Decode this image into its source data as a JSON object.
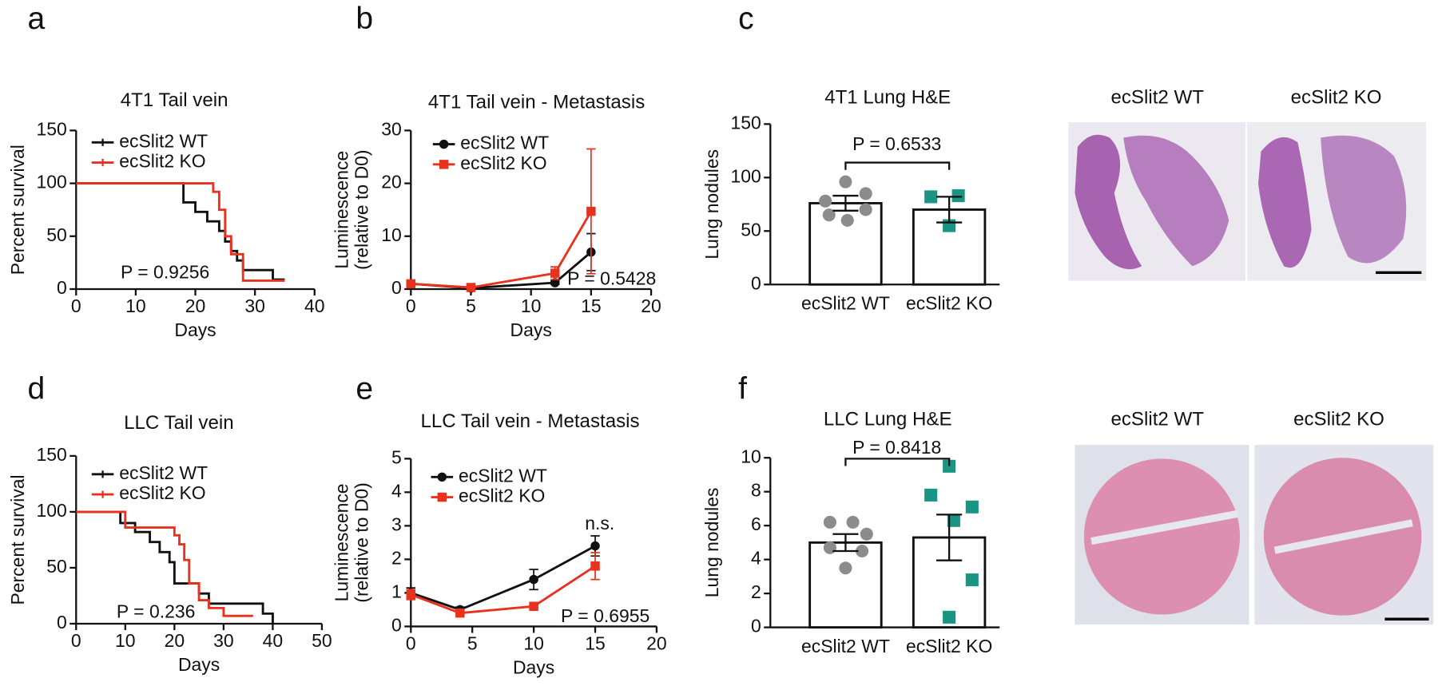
{
  "panel_letters": [
    "a",
    "b",
    "c",
    "d",
    "e",
    "f"
  ],
  "image_labels": [
    [
      "ecSlit2 WT",
      "ecSlit2 KO"
    ],
    [
      "ecSlit2 WT",
      "ecSlit2 KO"
    ]
  ],
  "chart_data": [
    {
      "type": "survival",
      "title": "4T1 Tail vein",
      "xlabel": "Days",
      "ylabel": [
        "Percent survival"
      ],
      "xlim": [
        0,
        40
      ],
      "xticks": [
        0,
        10,
        20,
        30,
        40
      ],
      "ylim": [
        0,
        150
      ],
      "yticks": [
        0,
        50,
        100,
        150
      ],
      "series": [
        {
          "name": "ecSlit2 WT",
          "color": "#111111",
          "x": [
            0,
            18,
            20,
            22,
            24,
            25,
            26,
            27,
            28,
            33,
            35
          ],
          "values": [
            100,
            82,
            73,
            64,
            55,
            45,
            36,
            27,
            18,
            9,
            9
          ]
        },
        {
          "name": "ecSlit2 KO",
          "color": "#e8321e",
          "x": [
            0,
            23,
            24,
            25,
            26,
            28,
            35
          ],
          "values": [
            100,
            92,
            75,
            50,
            33,
            8,
            8
          ]
        }
      ],
      "annotations": [
        "P = 0.9256"
      ]
    },
    {
      "type": "line",
      "title": "4T1 Tail vein - Metastasis",
      "xlabel": "Days",
      "ylabel": [
        "Luminescence",
        "(relative to D0)"
      ],
      "xlim": [
        0,
        20
      ],
      "xticks": [
        0,
        5,
        10,
        15,
        20
      ],
      "ylim": [
        0,
        30
      ],
      "yticks": [
        0,
        10,
        20,
        30
      ],
      "x": [
        0,
        5,
        12,
        15
      ],
      "series": [
        {
          "name": "ecSlit2 WT",
          "color": "#111111",
          "marker": "circle",
          "values": [
            1,
            0.2,
            1.2,
            7
          ],
          "errors": [
            0.3,
            0.1,
            0.3,
            3.5
          ]
        },
        {
          "name": "ecSlit2 KO",
          "color": "#e8321e",
          "marker": "square",
          "values": [
            1,
            0.3,
            3,
            14.7
          ],
          "errors": [
            0.3,
            0.1,
            1.2,
            11.8
          ]
        }
      ],
      "annotations": [
        "P = 0.5428"
      ]
    },
    {
      "type": "bar",
      "title": "4T1 Lung H&E",
      "ylabel": [
        "Lung nodules"
      ],
      "ylim": [
        0,
        150
      ],
      "yticks": [
        0,
        50,
        100,
        150
      ],
      "categories": [
        "ecSlit2 WT",
        "ecSlit2 KO"
      ],
      "values": [
        76,
        70
      ],
      "errors": [
        7,
        12
      ],
      "colors": [
        "#8c8c8c",
        "#1a9485"
      ],
      "markers": [
        "circle",
        "square"
      ],
      "points": [
        [
          96,
          85,
          78,
          70,
          65,
          60
        ],
        [
          82,
          83,
          55
        ]
      ],
      "annotations": [
        "P = 0.6533"
      ]
    },
    {
      "type": "survival",
      "title": "LLC Tail vein",
      "xlabel": "Days",
      "ylabel": [
        "Percent survival"
      ],
      "xlim": [
        0,
        50
      ],
      "xticks": [
        0,
        10,
        20,
        30,
        40,
        50
      ],
      "ylim": [
        0,
        150
      ],
      "yticks": [
        0,
        50,
        100,
        150
      ],
      "series": [
        {
          "name": "ecSlit2 WT",
          "color": "#111111",
          "x": [
            0,
            9,
            12,
            15,
            17,
            19,
            20,
            25,
            27,
            38,
            40
          ],
          "values": [
            100,
            90,
            82,
            73,
            64,
            55,
            36,
            27,
            18,
            9,
            0
          ]
        },
        {
          "name": "ecSlit2 KO",
          "color": "#e8321e",
          "x": [
            0,
            10,
            20,
            21,
            22,
            23,
            25,
            27,
            30,
            36
          ],
          "values": [
            100,
            86,
            79,
            71,
            57,
            36,
            21,
            14,
            7,
            7
          ]
        }
      ],
      "annotations": [
        "P = 0.236"
      ]
    },
    {
      "type": "line",
      "title": "LLC Tail vein - Metastasis",
      "xlabel": "Days",
      "ylabel": [
        "Luminescence",
        "(relative to D0)"
      ],
      "xlim": [
        0,
        20
      ],
      "xticks": [
        0,
        5,
        10,
        15,
        20
      ],
      "ylim": [
        0,
        5
      ],
      "yticks": [
        0,
        1,
        2,
        3,
        4,
        5
      ],
      "x": [
        0,
        4,
        10,
        15
      ],
      "series": [
        {
          "name": "ecSlit2 WT",
          "color": "#111111",
          "marker": "circle",
          "values": [
            1,
            0.5,
            1.4,
            2.4
          ],
          "errors": [
            0.15,
            0.08,
            0.3,
            0.3
          ]
        },
        {
          "name": "ecSlit2 KO",
          "color": "#e8321e",
          "marker": "square",
          "values": [
            0.95,
            0.4,
            0.6,
            1.8
          ],
          "errors": [
            0.15,
            0.05,
            0.05,
            0.4
          ]
        }
      ],
      "annotations": [
        "n.s.",
        "P = 0.6955"
      ]
    },
    {
      "type": "bar",
      "title": "LLC Lung H&E",
      "ylabel": [
        "Lung nodules"
      ],
      "ylim": [
        0,
        10
      ],
      "yticks": [
        0,
        2,
        4,
        6,
        8,
        10
      ],
      "categories": [
        "ecSlit2 WT",
        "ecSlit2 KO"
      ],
      "values": [
        5,
        5.3
      ],
      "errors": [
        0.5,
        1.35
      ],
      "colors": [
        "#8c8c8c",
        "#1a9485"
      ],
      "markers": [
        "circle",
        "square"
      ],
      "points": [
        [
          6.2,
          6.2,
          5.5,
          4.7,
          4.5,
          3.5
        ],
        [
          9.5,
          7.8,
          7.1,
          6.3,
          2.8,
          0.6
        ]
      ],
      "annotations": [
        "P = 0.8418"
      ]
    }
  ]
}
